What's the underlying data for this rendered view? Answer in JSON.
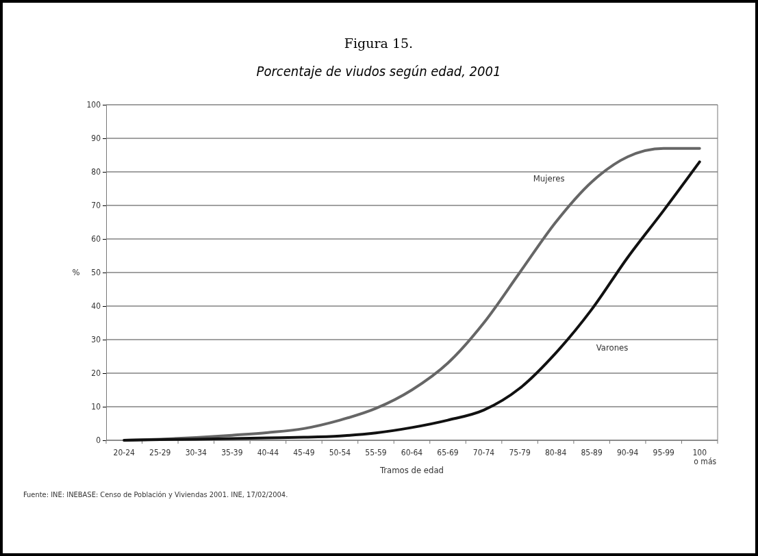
{
  "chart_data": {
    "type": "line",
    "title": "Figura 15.",
    "subtitle": "Porcentaje de viudos según edad, 2001",
    "xlabel": "Tramos de edad",
    "ylabel": "%",
    "categories": [
      "20-24",
      "25-29",
      "30-34",
      "35-39",
      "40-44",
      "45-49",
      "50-54",
      "55-59",
      "60-64",
      "65-69",
      "70-74",
      "75-79",
      "80-84",
      "85-89",
      "90-94",
      "95-99",
      "100 o más"
    ],
    "series": [
      {
        "name": "Mujeres",
        "color": "#666666",
        "values": [
          0,
          0.3,
          0.8,
          1.5,
          2.3,
          3.5,
          6,
          9.5,
          15,
          23,
          35,
          50,
          65,
          77,
          84.5,
          87,
          87
        ]
      },
      {
        "name": "Varones",
        "color": "#111111",
        "values": [
          0,
          0.2,
          0.3,
          0.5,
          0.7,
          0.9,
          1.3,
          2.2,
          3.8,
          6,
          9,
          15.5,
          26,
          39,
          54.5,
          68.5,
          83
        ]
      }
    ],
    "ylim": [
      0,
      100
    ],
    "yticks": [
      0,
      10,
      20,
      30,
      40,
      50,
      60,
      70,
      80,
      90,
      100
    ],
    "grid": "y",
    "marker": "none",
    "line_style": "solid",
    "annotations": [
      "Fuente: INE: INEBASE: Censo de Población y Viviendas 2001. INE, 17/02/2004."
    ]
  }
}
